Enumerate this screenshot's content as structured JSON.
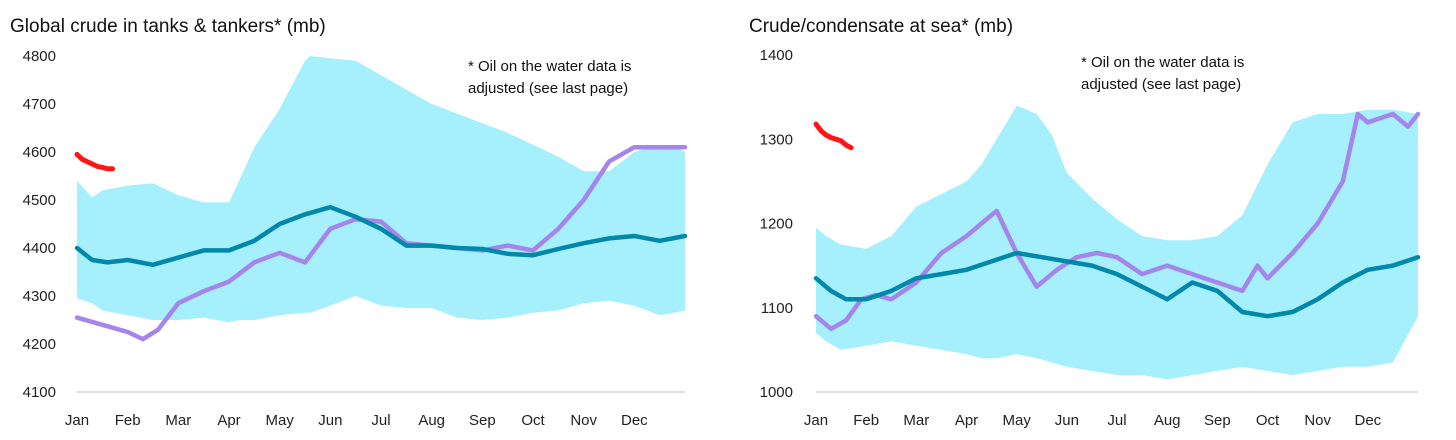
{
  "chart_data": [
    {
      "type": "line",
      "title": "Global crude in tanks & tankers* (mb)",
      "note_lines": [
        "* Oil on the water data is",
        "adjusted (see last page)"
      ],
      "ylim": [
        4100,
        4800
      ],
      "yticks": [
        4100,
        4200,
        4300,
        4400,
        4500,
        4600,
        4700,
        4800
      ],
      "months": [
        "Jan",
        "Feb",
        "Mar",
        "Apr",
        "May",
        "Jun",
        "Jul",
        "Aug",
        "Sep",
        "Oct",
        "Nov",
        "Dec"
      ],
      "xlim": [
        0,
        12
      ],
      "grid": false,
      "colors": {
        "range": "#a5f0fc",
        "avg": "#0088aa",
        "prev": "#a585ec",
        "current": "#ff1515",
        "axis": "#bfbfbf"
      },
      "range_band": {
        "x": [
          0,
          0.3,
          0.5,
          1,
          1.5,
          2,
          2.5,
          3,
          3.2,
          3.5,
          4,
          4.5,
          4.6,
          5,
          5.5,
          6,
          6.5,
          7,
          7.5,
          8,
          8.5,
          9,
          9.5,
          10,
          10.5,
          11,
          11.5,
          11.8,
          12
        ],
        "high": [
          4540,
          4505,
          4520,
          4530,
          4535,
          4510,
          4495,
          4495,
          4540,
          4610,
          4690,
          4790,
          4800,
          4795,
          4790,
          4760,
          4730,
          4700,
          4680,
          4660,
          4640,
          4615,
          4590,
          4560,
          4560,
          4600,
          4615,
          4610,
          4600
        ],
        "low": [
          4295,
          4285,
          4270,
          4260,
          4250,
          4250,
          4255,
          4245,
          4250,
          4250,
          4260,
          4265,
          4265,
          4280,
          4300,
          4280,
          4275,
          4275,
          4255,
          4250,
          4255,
          4265,
          4270,
          4285,
          4290,
          4280,
          4260,
          4265,
          4270
        ]
      },
      "series": [
        {
          "role": "prev",
          "x": [
            0,
            0.5,
            1,
            1.3,
            1.6,
            2,
            2.5,
            3,
            3.5,
            4,
            4.5,
            5,
            5.5,
            6,
            6.5,
            7,
            7.5,
            8,
            8.5,
            9,
            9.5,
            10,
            10.5,
            11,
            11.5,
            12
          ],
          "values": [
            4255,
            4240,
            4225,
            4210,
            4230,
            4285,
            4310,
            4330,
            4370,
            4390,
            4370,
            4440,
            4460,
            4455,
            4410,
            4405,
            4400,
            4395,
            4405,
            4395,
            4440,
            4500,
            4580,
            4610,
            4610,
            4610
          ]
        },
        {
          "role": "avg",
          "x": [
            0,
            0.3,
            0.6,
            1,
            1.5,
            2,
            2.5,
            3,
            3.5,
            4,
            4.5,
            5,
            5.5,
            6,
            6.5,
            7,
            7.5,
            8,
            8.5,
            9,
            9.5,
            10,
            10.5,
            11,
            11.5,
            12
          ],
          "values": [
            4400,
            4375,
            4370,
            4375,
            4365,
            4380,
            4395,
            4395,
            4415,
            4450,
            4470,
            4485,
            4465,
            4440,
            4405,
            4405,
            4400,
            4398,
            4388,
            4385,
            4398,
            4410,
            4420,
            4425,
            4415,
            4425
          ]
        },
        {
          "role": "current",
          "x": [
            0,
            0.1,
            0.2,
            0.3,
            0.4,
            0.5,
            0.6,
            0.7
          ],
          "values": [
            4595,
            4585,
            4580,
            4575,
            4570,
            4568,
            4565,
            4565
          ]
        }
      ]
    },
    {
      "type": "line",
      "title": "Crude/condensate at sea* (mb)",
      "note_lines": [
        "* Oil on the water data is",
        "adjusted (see last page)"
      ],
      "ylim": [
        1000,
        1400
      ],
      "yticks": [
        1000,
        1100,
        1200,
        1300,
        1400
      ],
      "months": [
        "Jan",
        "Feb",
        "Mar",
        "Apr",
        "May",
        "Jun",
        "Jul",
        "Aug",
        "Sep",
        "Oct",
        "Nov",
        "Dec"
      ],
      "xlim": [
        0,
        12
      ],
      "grid": false,
      "colors": {
        "range": "#a5f0fc",
        "avg": "#0088aa",
        "prev": "#a585ec",
        "current": "#ff1515",
        "axis": "#bfbfbf"
      },
      "range_band": {
        "x": [
          0,
          0.2,
          0.5,
          1,
          1.5,
          2,
          2.5,
          3,
          3.3,
          3.6,
          4,
          4.4,
          4.7,
          5,
          5.5,
          6,
          6.5,
          7,
          7.5,
          8,
          8.5,
          9,
          9.5,
          10,
          10.5,
          11,
          11.5,
          12
        ],
        "high": [
          1195,
          1185,
          1175,
          1170,
          1185,
          1220,
          1235,
          1250,
          1270,
          1300,
          1340,
          1330,
          1305,
          1260,
          1230,
          1205,
          1185,
          1180,
          1180,
          1185,
          1210,
          1270,
          1320,
          1330,
          1330,
          1335,
          1335,
          1330
        ],
        "low": [
          1070,
          1060,
          1050,
          1055,
          1060,
          1055,
          1050,
          1045,
          1040,
          1040,
          1045,
          1040,
          1035,
          1030,
          1025,
          1020,
          1020,
          1015,
          1020,
          1025,
          1030,
          1025,
          1020,
          1025,
          1030,
          1030,
          1035,
          1090
        ]
      },
      "series": [
        {
          "role": "prev",
          "x": [
            0,
            0.3,
            0.6,
            0.9,
            1.2,
            1.5,
            2,
            2.5,
            3,
            3.3,
            3.6,
            4,
            4.4,
            4.8,
            5.2,
            5.6,
            6,
            6.5,
            7,
            7.5,
            8,
            8.5,
            8.8,
            9,
            9.5,
            10,
            10.5,
            10.8,
            11,
            11.5,
            11.8,
            12
          ],
          "values": [
            1090,
            1075,
            1085,
            1110,
            1115,
            1110,
            1130,
            1165,
            1185,
            1200,
            1215,
            1165,
            1125,
            1145,
            1160,
            1165,
            1160,
            1140,
            1150,
            1140,
            1130,
            1120,
            1150,
            1135,
            1165,
            1200,
            1250,
            1330,
            1320,
            1330,
            1315,
            1330
          ]
        },
        {
          "role": "avg",
          "x": [
            0,
            0.3,
            0.6,
            1,
            1.5,
            2,
            2.5,
            3,
            3.5,
            4,
            4.5,
            5,
            5.5,
            6,
            6.5,
            7,
            7.5,
            8,
            8.5,
            9,
            9.5,
            10,
            10.5,
            11,
            11.5,
            12
          ],
          "values": [
            1135,
            1120,
            1110,
            1110,
            1120,
            1135,
            1140,
            1145,
            1155,
            1165,
            1160,
            1155,
            1150,
            1140,
            1125,
            1110,
            1130,
            1120,
            1095,
            1090,
            1095,
            1110,
            1130,
            1145,
            1150,
            1160
          ]
        },
        {
          "role": "current",
          "x": [
            0,
            0.1,
            0.2,
            0.3,
            0.4,
            0.5,
            0.6,
            0.7
          ],
          "values": [
            1318,
            1310,
            1305,
            1302,
            1300,
            1298,
            1293,
            1290
          ]
        }
      ]
    }
  ]
}
